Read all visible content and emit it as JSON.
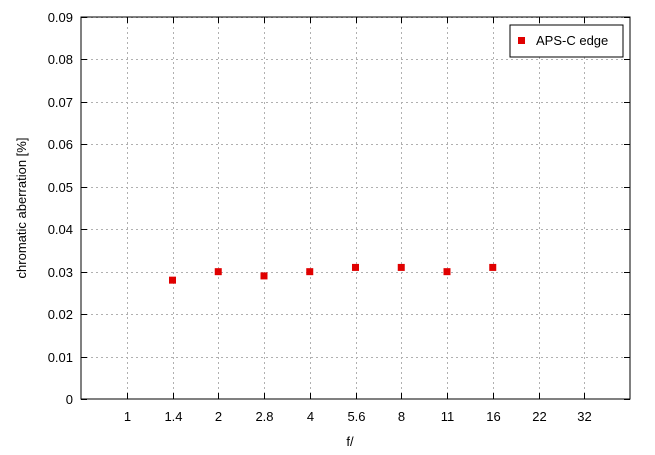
{
  "chart_data": {
    "type": "scatter",
    "title": "",
    "xlabel": "f/",
    "ylabel": "chromatic aberration [%]",
    "categories": [
      "1",
      "1.4",
      "2",
      "2.8",
      "4",
      "5.6",
      "8",
      "11",
      "16",
      "22",
      "32"
    ],
    "yticks": [
      "0",
      "0.01",
      "0.02",
      "0.03",
      "0.04",
      "0.05",
      "0.06",
      "0.07",
      "0.08",
      "0.09"
    ],
    "ylim": [
      0,
      0.09
    ],
    "grid": true,
    "legend_position": "top-right",
    "series": [
      {
        "name": "APS-C edge",
        "color": "#e00000",
        "marker": "square",
        "x": [
          "1.4",
          "2",
          "2.8",
          "4",
          "5.6",
          "8",
          "11",
          "16"
        ],
        "values": [
          0.028,
          0.03,
          0.029,
          0.03,
          0.031,
          0.031,
          0.03,
          0.031
        ]
      }
    ]
  }
}
